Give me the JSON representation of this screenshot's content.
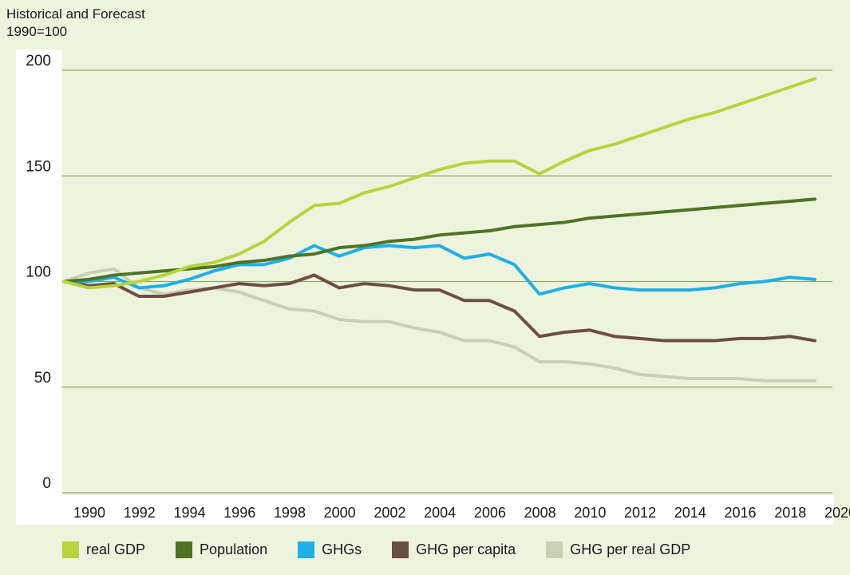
{
  "header": {
    "title": "Historical and Forecast",
    "subtitle": "1990=100"
  },
  "colors": {
    "real_gdp": "#b6d43c",
    "population": "#4e7325",
    "ghgs": "#1fafe6",
    "ghg_per_capita": "#6b4e44",
    "ghg_per_real_gdp": "#c6d1b6"
  },
  "chart_data": {
    "type": "line",
    "title": "Historical and Forecast",
    "subtitle": "1990=100",
    "xlabel": "",
    "ylabel": "1990=100",
    "x": [
      1990,
      1991,
      1992,
      1993,
      1994,
      1995,
      1996,
      1997,
      1998,
      1999,
      2000,
      2001,
      2002,
      2003,
      2004,
      2005,
      2006,
      2007,
      2008,
      2009,
      2010,
      2011,
      2012,
      2013,
      2014,
      2015,
      2016,
      2017,
      2018,
      2019,
      2020
    ],
    "x_tick_labels": [
      "1990",
      "1992",
      "1994",
      "1996",
      "1998",
      "2000",
      "2002",
      "2004",
      "2006",
      "2008",
      "2010",
      "2012",
      "2014",
      "2016",
      "2018",
      "2020"
    ],
    "y_ticks": [
      0,
      50,
      100,
      150,
      200
    ],
    "ylim": [
      0,
      200
    ],
    "xlim": [
      1990,
      2020
    ],
    "grid": "horizontal",
    "legend_position": "bottom",
    "series": [
      {
        "key": "ghg_per_real_gdp",
        "name": "GHG per real GDP",
        "values": [
          100,
          104,
          106,
          97,
          94,
          96,
          97,
          95,
          91,
          87,
          86,
          82,
          81,
          81,
          78,
          76,
          72,
          72,
          69,
          62,
          62,
          61,
          59,
          56,
          55,
          54,
          54,
          54,
          53,
          53,
          53
        ]
      },
      {
        "key": "ghg_per_capita",
        "name": "GHG per capita",
        "values": [
          100,
          98,
          99,
          93,
          93,
          95,
          97,
          99,
          98,
          99,
          103,
          97,
          99,
          98,
          96,
          96,
          91,
          91,
          86,
          74,
          76,
          77,
          74,
          73,
          72,
          72,
          72,
          73,
          73,
          74,
          72
        ]
      },
      {
        "key": "ghgs",
        "name": "GHGs",
        "values": [
          100,
          100,
          102,
          97,
          98,
          101,
          105,
          108,
          108,
          111,
          117,
          112,
          116,
          117,
          116,
          117,
          111,
          113,
          108,
          94,
          97,
          99,
          97,
          96,
          96,
          96,
          97,
          99,
          100,
          102,
          101
        ]
      },
      {
        "key": "population",
        "name": "Population",
        "values": [
          100,
          101,
          103,
          104,
          105,
          106,
          107,
          109,
          110,
          112,
          113,
          116,
          117,
          119,
          120,
          122,
          123,
          124,
          126,
          127,
          128,
          130,
          131,
          132,
          133,
          134,
          135,
          136,
          137,
          138,
          139
        ]
      },
      {
        "key": "real_gdp",
        "name": "real GDP",
        "values": [
          100,
          97,
          98,
          100,
          103,
          107,
          109,
          113,
          119,
          128,
          136,
          137,
          142,
          145,
          149,
          153,
          156,
          157,
          157,
          151,
          157,
          162,
          165,
          169,
          173,
          177,
          180,
          184,
          188,
          192,
          196
        ]
      }
    ]
  },
  "legend": [
    {
      "label": "real GDP",
      "color": "#b6d43c"
    },
    {
      "label": "Population",
      "color": "#4e7325"
    },
    {
      "label": "GHGs",
      "color": "#1fafe6"
    },
    {
      "label": "GHG per capita",
      "color": "#6b4e44"
    },
    {
      "label": "GHG per real GDP",
      "color": "#c6d1b6"
    }
  ]
}
